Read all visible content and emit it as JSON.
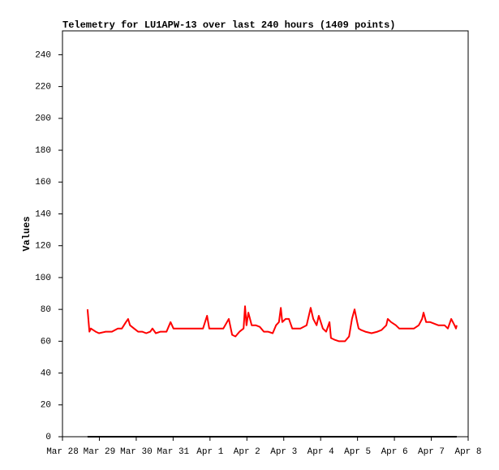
{
  "chart_data": {
    "type": "line",
    "title": "Telemetry for LU1APW-13 over last 240 hours (1409 points)",
    "y_label": "Values",
    "xlim": [
      0,
      11
    ],
    "xticks": [
      {
        "value": 0,
        "label": "Mar 28"
      },
      {
        "value": 1,
        "label": "Mar 29"
      },
      {
        "value": 2,
        "label": "Mar 30"
      },
      {
        "value": 3,
        "label": "Mar 31"
      },
      {
        "value": 4,
        "label": "Apr 1"
      },
      {
        "value": 5,
        "label": "Apr 2"
      },
      {
        "value": 6,
        "label": "Apr 3"
      },
      {
        "value": 7,
        "label": "Apr 4"
      },
      {
        "value": 8,
        "label": "Apr 5"
      },
      {
        "value": 9,
        "label": "Apr 6"
      },
      {
        "value": 10,
        "label": "Apr 7"
      },
      {
        "value": 11,
        "label": "Apr 8"
      }
    ],
    "ylim": [
      0,
      255
    ],
    "yticks": [
      0,
      20,
      40,
      60,
      80,
      100,
      120,
      140,
      160,
      180,
      200,
      220,
      240
    ],
    "grid": false,
    "series": [
      {
        "color": "#ff0000",
        "x": [
          0.68,
          0.73,
          0.77,
          0.9,
          0.99,
          1.17,
          1.34,
          1.5,
          1.61,
          1.72,
          1.78,
          1.83,
          1.94,
          2.05,
          2.16,
          2.27,
          2.38,
          2.44,
          2.53,
          2.66,
          2.82,
          2.93,
          3.01,
          3.15,
          3.37,
          3.59,
          3.81,
          3.92,
          3.98,
          4.14,
          4.36,
          4.51,
          4.6,
          4.69,
          4.8,
          4.91,
          4.95,
          4.99,
          5.04,
          5.13,
          5.24,
          5.35,
          5.46,
          5.57,
          5.7,
          5.79,
          5.87,
          5.92,
          5.96,
          6.05,
          6.14,
          6.23,
          6.45,
          6.62,
          6.73,
          6.8,
          6.89,
          6.95,
          7.06,
          7.15,
          7.24,
          7.28,
          7.37,
          7.5,
          7.66,
          7.77,
          7.85,
          7.92,
          7.99,
          8.03,
          8.1,
          8.21,
          8.38,
          8.54,
          8.65,
          8.78,
          8.82,
          8.91,
          9.04,
          9.13,
          9.26,
          9.42,
          9.53,
          9.66,
          9.75,
          9.79,
          9.86,
          9.97,
          10.19,
          10.36,
          10.45,
          10.54,
          10.63,
          10.67,
          10.69
        ],
        "values": [
          80,
          66,
          68,
          66,
          65,
          66,
          66,
          68,
          68,
          72,
          74,
          70,
          68,
          66,
          66,
          65,
          66,
          68,
          65,
          66,
          66,
          72,
          68,
          68,
          68,
          68,
          68,
          76,
          68,
          68,
          68,
          74,
          64,
          63,
          66,
          68,
          82,
          70,
          78,
          70,
          70,
          69,
          66,
          66,
          65,
          70,
          72,
          81,
          72,
          74,
          74,
          68,
          68,
          70,
          81,
          74,
          70,
          76,
          68,
          66,
          72,
          62,
          61,
          60,
          60,
          63,
          74,
          80,
          72,
          68,
          67,
          66,
          65,
          66,
          67,
          70,
          74,
          72,
          70,
          68,
          68,
          68,
          68,
          70,
          74,
          78,
          72,
          72,
          70,
          70,
          68,
          74,
          70,
          68,
          70
        ]
      },
      {
        "color": "#000000",
        "x": [
          0.68,
          10.69
        ],
        "values": [
          0,
          0
        ]
      }
    ]
  }
}
